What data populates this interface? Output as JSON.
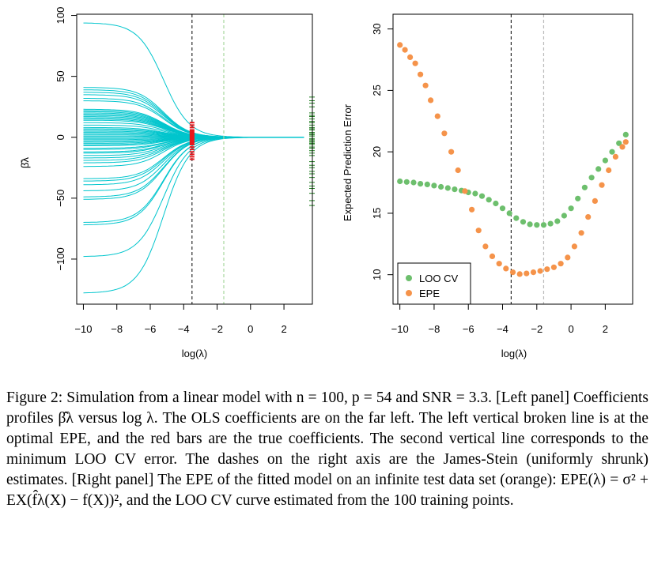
{
  "chart_data": [
    {
      "type": "line",
      "panel": "left",
      "xlabel": "log(λ)",
      "ylabel": "β̂λ",
      "xlim": [
        -10.4,
        3.7
      ],
      "ylim": [
        -137,
        101
      ],
      "xticks": [
        -10,
        -8,
        -6,
        -4,
        -2,
        0,
        2
      ],
      "xtick_labels": [
        "−10",
        "−8",
        "−6",
        "−4",
        "−2",
        "0",
        "2"
      ],
      "yticks": [
        -100,
        -50,
        0,
        50,
        100
      ],
      "ytick_labels": [
        "−100",
        "−50",
        "0",
        "50",
        "100"
      ],
      "x": [
        -10,
        -9,
        -8,
        -7,
        -6,
        -5,
        -4,
        -3,
        -2,
        -1,
        0,
        1,
        2,
        3
      ],
      "series_color": "#00c5cd",
      "ols_coefficients": [
        94,
        41,
        39,
        37,
        35,
        32,
        30,
        23,
        22,
        21,
        20,
        19,
        18,
        17,
        16,
        15,
        14,
        12,
        10,
        8,
        7,
        6,
        5,
        4,
        3,
        2,
        1,
        0,
        -1,
        -2,
        -3,
        -4,
        -5,
        -6,
        -7,
        -9,
        -10,
        -12,
        -13,
        -15,
        -17,
        -19,
        -21,
        -24,
        -34,
        -36,
        -39,
        -44,
        -49,
        -51,
        -70,
        -72,
        -98,
        -128
      ],
      "shrink_center": -5.2,
      "optimal_epe_line_x": -3.5,
      "optimal_epe_line_color": "#000000",
      "min_loo_line_x": -1.6,
      "min_loo_line_color": "#a8d8a0",
      "true_coefficient_x": -3.5,
      "true_coefficient_color": "#e8161b",
      "true_coefficients": [
        12,
        10,
        8,
        6,
        5,
        4,
        3,
        2,
        1,
        0,
        -1,
        -2,
        -3,
        -4,
        -5,
        -6,
        -8,
        -10,
        -12,
        -14,
        -16,
        -18
      ],
      "js_estimates": [
        33,
        30,
        28,
        25,
        20,
        18,
        17,
        15,
        13,
        12,
        10,
        8,
        7,
        6,
        4,
        3,
        2,
        1,
        -1,
        -2,
        -3,
        -4,
        -5,
        -6,
        -8,
        -9,
        -11,
        -13,
        -15,
        -20,
        -23,
        -25,
        -28,
        -30,
        -33,
        -37,
        -40,
        -42,
        -46,
        -52,
        -56
      ],
      "js_color": "#1e7d1e"
    },
    {
      "type": "scatter",
      "panel": "right",
      "xlabel": "log(λ)",
      "ylabel": "Expected Prediction Error",
      "xlim": [
        -10.4,
        3.6
      ],
      "ylim": [
        7.6,
        31.2
      ],
      "xticks": [
        -10,
        -8,
        -6,
        -4,
        -2,
        0,
        2
      ],
      "xtick_labels": [
        "−10",
        "−8",
        "−6",
        "−4",
        "−2",
        "0",
        "2"
      ],
      "yticks": [
        10,
        15,
        20,
        25,
        30
      ],
      "ytick_labels": [
        "10",
        "15",
        "20",
        "25",
        "30"
      ],
      "optimal_epe_line_x": -3.5,
      "min_loo_line_x": -1.6,
      "legend_position": "bottom-left",
      "series": [
        {
          "name": "LOO CV",
          "color": "#6dbf6d",
          "x": [
            -10,
            -9.6,
            -9.2,
            -8.8,
            -8.4,
            -8,
            -7.6,
            -7.2,
            -6.8,
            -6.4,
            -6,
            -5.6,
            -5.2,
            -4.8,
            -4.4,
            -4,
            -3.6,
            -3.2,
            -2.8,
            -2.4,
            -2,
            -1.6,
            -1.2,
            -0.8,
            -0.4,
            0,
            0.4,
            0.8,
            1.2,
            1.6,
            2,
            2.4,
            2.8,
            3.2
          ],
          "values": [
            17.6,
            17.55,
            17.5,
            17.4,
            17.35,
            17.25,
            17.15,
            17.05,
            16.95,
            16.85,
            16.7,
            16.6,
            16.4,
            16.1,
            15.8,
            15.4,
            15.0,
            14.6,
            14.3,
            14.1,
            14.05,
            14.05,
            14.15,
            14.35,
            14.8,
            15.4,
            16.2,
            17.1,
            17.9,
            18.6,
            19.3,
            20.0,
            20.7,
            21.4
          ]
        },
        {
          "name": "EPE",
          "color": "#f5934a",
          "x": [
            -10,
            -9.7,
            -9.4,
            -9.1,
            -8.8,
            -8.5,
            -8.2,
            -7.8,
            -7.4,
            -7,
            -6.6,
            -6.2,
            -5.8,
            -5.4,
            -5,
            -4.6,
            -4.2,
            -3.8,
            -3.4,
            -3,
            -2.6,
            -2.2,
            -1.8,
            -1.4,
            -1,
            -0.6,
            -0.2,
            0.2,
            0.6,
            1,
            1.4,
            1.8,
            2.2,
            2.6,
            3,
            3.2
          ],
          "values": [
            28.7,
            28.3,
            27.7,
            27.2,
            26.3,
            25.4,
            24.2,
            22.9,
            21.5,
            20.0,
            18.5,
            16.8,
            15.3,
            13.6,
            12.3,
            11.5,
            10.9,
            10.5,
            10.2,
            10.05,
            10.1,
            10.2,
            10.3,
            10.45,
            10.6,
            10.9,
            11.4,
            12.3,
            13.4,
            14.7,
            16.0,
            17.3,
            18.5,
            19.6,
            20.4,
            20.8
          ]
        }
      ]
    }
  ],
  "caption": {
    "label": "Figure 2:",
    "line1": "Simulation from a linear model with n = 100, p = 54 and SNR = 3.3.",
    "line2": "[Left panel] Coefficients profiles β̂λ versus log λ. The OLS coefficients are on the",
    "line3": "far left. The left vertical broken line is at the optimal EPE, and the red bars",
    "line4": "are the true coefficients. The second vertical line corresponds to the minimum",
    "line5": "LOO CV error. The dashes on the right axis are the James-Stein (uniformly",
    "line6": "shrunk) estimates. [Right panel] The EPE of the fitted model on an infinite",
    "line7": "test data set (orange): EPE(λ) = σ² + EX(f̂λ(X) − f(X))², and the LOO CV",
    "line8": "curve estimated from the 100 training points."
  }
}
